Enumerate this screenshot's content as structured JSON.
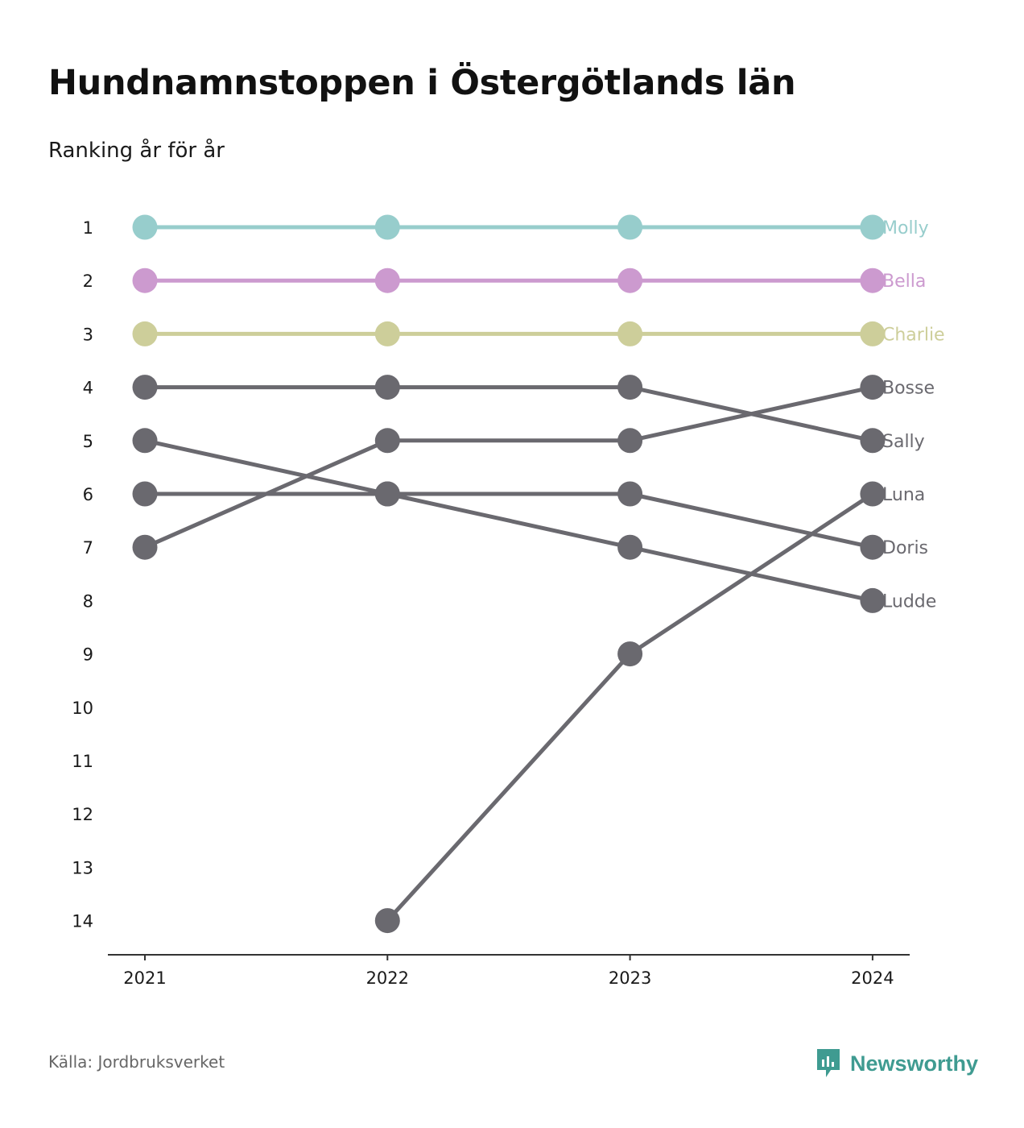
{
  "title": "Hundnamnstoppen i Östergötlands län",
  "subtitle": "Ranking år för år",
  "source": "Källa: Jordbruksverket",
  "brand": {
    "name": "Newsworthy",
    "icon": "newsworthy-logo-icon",
    "color": "#3f9b91"
  },
  "chart_data": {
    "type": "line",
    "title": "Hundnamnstoppen i Östergötlands län",
    "subtitle": "Ranking år för år",
    "x": [
      "2021",
      "2022",
      "2023",
      "2024"
    ],
    "y_ticks": [
      1,
      2,
      3,
      4,
      5,
      6,
      7,
      8,
      9,
      10,
      11,
      12,
      13,
      14
    ],
    "ylim": [
      1,
      14
    ],
    "y_reversed": true,
    "grid": false,
    "legend": "direct labels at line ends (right)",
    "series": [
      {
        "name": "Molly",
        "values": [
          1,
          1,
          1,
          1
        ],
        "color": "#97cdcc"
      },
      {
        "name": "Bella",
        "values": [
          2,
          2,
          2,
          2
        ],
        "color": "#cc9acf"
      },
      {
        "name": "Charlie",
        "values": [
          3,
          3,
          3,
          3
        ],
        "color": "#cdce9a"
      },
      {
        "name": "Bosse",
        "values": [
          7,
          5,
          5,
          4
        ],
        "color": "#6a696f"
      },
      {
        "name": "Sally",
        "values": [
          4,
          4,
          4,
          5
        ],
        "color": "#6a696f"
      },
      {
        "name": "Luna",
        "values": [
          null,
          14,
          9,
          6
        ],
        "color": "#6a696f"
      },
      {
        "name": "Doris",
        "values": [
          6,
          6,
          6,
          7
        ],
        "color": "#6a696f"
      },
      {
        "name": "Ludde",
        "values": [
          5,
          6,
          7,
          8
        ],
        "color": "#6a696f"
      }
    ]
  }
}
